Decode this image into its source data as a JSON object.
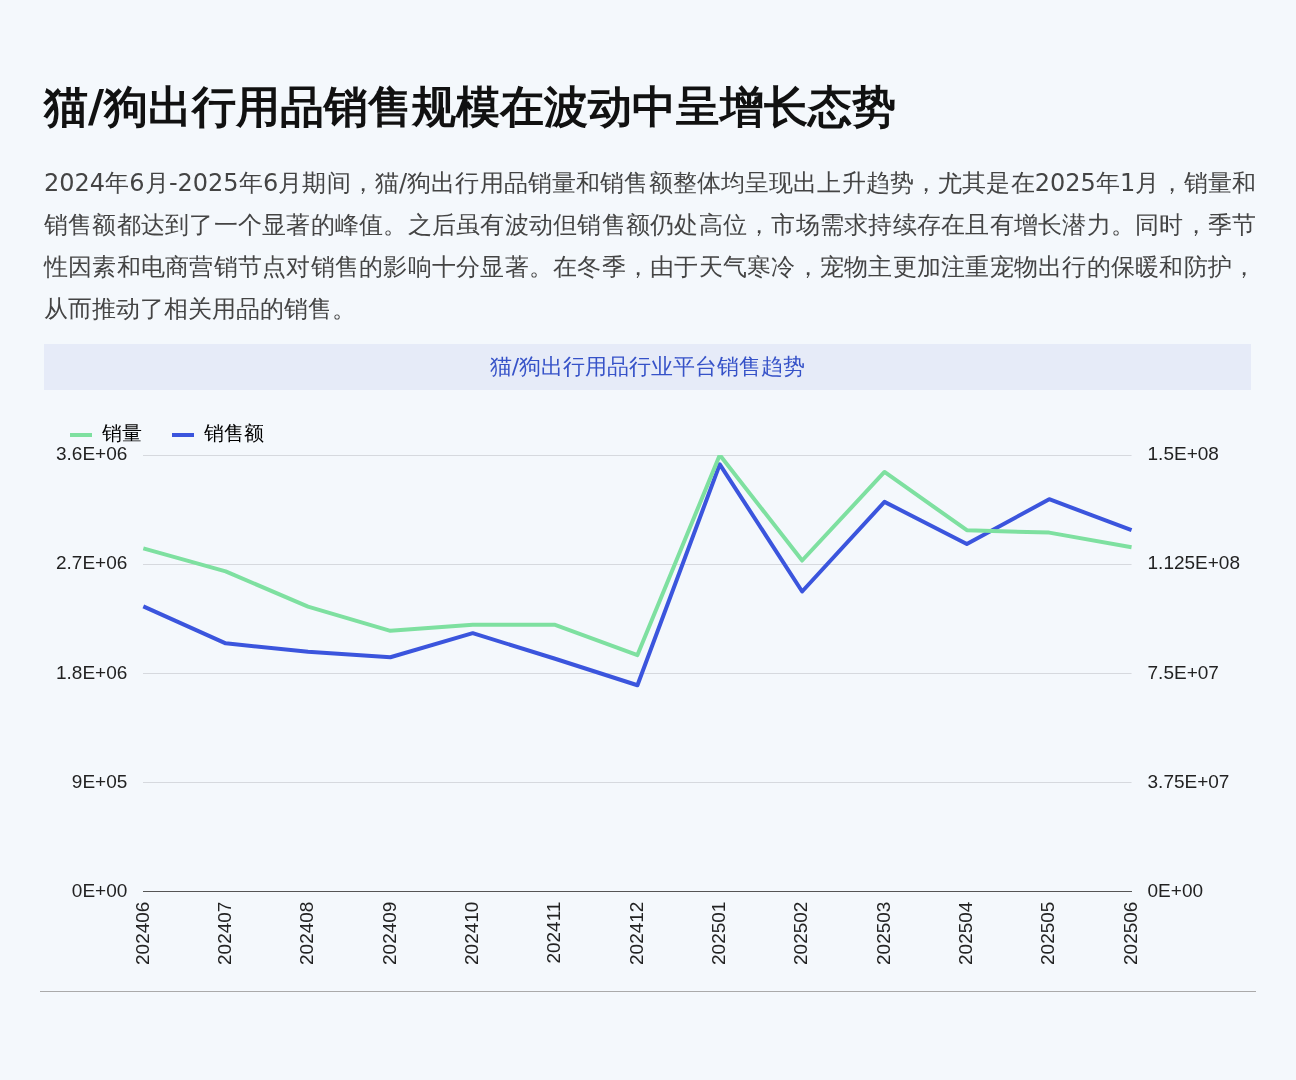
{
  "chart_data": {
    "type": "line",
    "title": "猫/狗出行用品行业平台销售趋势",
    "subtitle": "2024年6月-2025年6月期间，猫/狗出行用品销量和销售额整体均呈现出上升趋势，尤其是在2025年1月，销量和销售额都达到了一个显著的峰值。之后虽有波动但销售额仍处高位，市场需求持续存在且有增长潜力。同时，季节性因素和电商营销节点对销售的影响十分显著。在冬季，由于天气寒冷，宠物主更加注重宠物出行的保暖和防护，从而推动了相关用品的销售。",
    "annotations": [
      "猫/狗出行用品销售规模在波动中呈增长态势"
    ],
    "categories": [
      "202406",
      "202407",
      "202408",
      "202409",
      "202410",
      "202411",
      "202412",
      "202501",
      "202502",
      "202503",
      "202504",
      "202505",
      "202506"
    ],
    "series": [
      {
        "name": "销量",
        "color": "#7ee0a0",
        "values": [
          2830000,
          2640000,
          2350000,
          2150000,
          2200000,
          2200000,
          1950000,
          3600000,
          2730000,
          3460000,
          2980000,
          2960000,
          2840000
        ]
      },
      {
        "name": "销售额",
        "color": "#3b55dd",
        "axis": "y2",
        "values": [
          98000000,
          85300000,
          82400000,
          80500000,
          88800000,
          80000000,
          70900000,
          146800000,
          103100000,
          133900000,
          119400000,
          134800000,
          124200000
        ]
      }
    ],
    "ylim": [
      0,
      3600000
    ],
    "yticks": [
      {
        "value": 0,
        "label": "0E+00"
      },
      {
        "value": 900000,
        "label": "9E+05"
      },
      {
        "value": 1800000,
        "label": "1.8E+06"
      },
      {
        "value": 2700000,
        "label": "2.7E+06"
      },
      {
        "value": 3600000,
        "label": "3.6E+06"
      }
    ],
    "y2lim": [
      0,
      150000000
    ],
    "y2ticks": [
      {
        "value": 0,
        "label": "0E+00"
      },
      {
        "value": 37500000,
        "label": "3.75E+07"
      },
      {
        "value": 75000000,
        "label": "7.5E+07"
      },
      {
        "value": 112500000,
        "label": "1.125E+08"
      },
      {
        "value": 150000000,
        "label": "1.5E+08"
      }
    ],
    "grid": "y",
    "legend": "top",
    "marker": "none",
    "line_style": "solid"
  }
}
